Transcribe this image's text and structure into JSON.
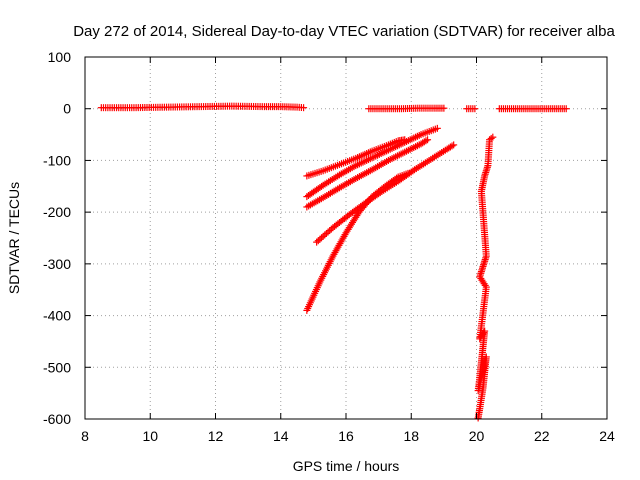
{
  "chart_data": {
    "type": "scatter",
    "title": "Day 272 of 2014, Sidereal Day-to-day VTEC variation (SDTVAR) for receiver alba",
    "xlabel": "GPS time / hours",
    "ylabel": "SDTVAR / TECUs",
    "xlim": [
      8,
      24
    ],
    "ylim": [
      -600,
      100
    ],
    "xticks": [
      8,
      10,
      12,
      14,
      16,
      18,
      20,
      22,
      24
    ],
    "yticks": [
      100,
      0,
      -100,
      -200,
      -300,
      -400,
      -500,
      -600
    ],
    "grid": true,
    "marker": "plus",
    "color": "#ff0000",
    "series": [
      {
        "name": "near-zero segment 1",
        "x": [
          8.5,
          9.5,
          10.5,
          11.5,
          12.5,
          13.5,
          14.0,
          14.5,
          14.7
        ],
        "y": [
          2,
          2,
          3,
          4,
          5,
          4,
          4,
          3,
          2
        ]
      },
      {
        "name": "near-zero segment 2",
        "x": [
          16.7,
          17.2,
          17.7,
          18.2,
          18.7,
          19.0
        ],
        "y": [
          0,
          0,
          0,
          1,
          1,
          1
        ]
      },
      {
        "name": "near-zero segment 3",
        "x": [
          19.7,
          19.95
        ],
        "y": [
          0,
          0
        ]
      },
      {
        "name": "near-zero segment 4",
        "x": [
          20.7,
          21.2,
          21.7,
          22.2,
          22.75
        ],
        "y": [
          0,
          0,
          0,
          0,
          0
        ]
      },
      {
        "name": "descending track 1",
        "x": [
          14.8,
          15.3,
          15.8,
          16.3,
          16.8,
          17.3,
          17.6,
          17.8
        ],
        "y": [
          -130,
          -120,
          -108,
          -96,
          -82,
          -70,
          -62,
          -60
        ]
      },
      {
        "name": "descending track 2",
        "x": [
          14.8,
          15.3,
          15.8,
          16.3,
          16.8,
          17.3,
          17.8,
          18.3,
          18.8
        ],
        "y": [
          -170,
          -148,
          -128,
          -110,
          -95,
          -80,
          -65,
          -50,
          -38
        ]
      },
      {
        "name": "descending track 3",
        "x": [
          14.8,
          15.3,
          15.8,
          16.3,
          16.8,
          17.3,
          17.8,
          18.3,
          18.5
        ],
        "y": [
          -190,
          -172,
          -153,
          -135,
          -118,
          -100,
          -84,
          -68,
          -60
        ]
      },
      {
        "name": "descending track 4",
        "x": [
          15.1,
          15.6,
          16.1,
          16.6,
          17.1,
          17.6,
          18.1,
          18.6,
          19.1,
          19.3
        ],
        "y": [
          -258,
          -230,
          -205,
          -182,
          -160,
          -140,
          -118,
          -98,
          -78,
          -70
        ]
      },
      {
        "name": "steep track",
        "x": [
          14.8,
          15.2,
          15.6,
          16.0,
          16.4,
          16.8,
          17.2,
          17.6,
          17.9
        ],
        "y": [
          -390,
          -335,
          -285,
          -240,
          -200,
          -170,
          -150,
          -132,
          -125
        ]
      },
      {
        "name": "vertical cluster",
        "x": [
          20.5,
          20.4,
          20.35,
          20.3,
          20.25,
          20.2,
          20.15,
          20.3,
          20.25,
          20.2,
          20.15,
          20.1,
          20.3,
          20.25,
          20.2,
          20.15,
          20.1,
          20.25,
          20.2,
          20.15,
          20.1,
          20.05,
          20.3,
          20.25,
          20.2,
          20.15,
          20.1,
          20.05
        ],
        "y": [
          -55,
          -60,
          -110,
          -120,
          -130,
          -145,
          -160,
          -285,
          -295,
          -305,
          -315,
          -325,
          -345,
          -370,
          -395,
          -420,
          -445,
          -430,
          -460,
          -490,
          -520,
          -545,
          -480,
          -510,
          -540,
          -560,
          -580,
          -598
        ]
      }
    ]
  }
}
